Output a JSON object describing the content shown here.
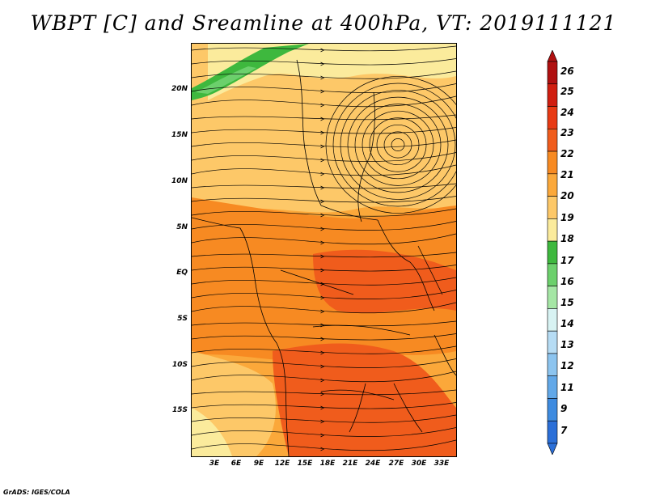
{
  "title": "WBPT [C] and Sreamline at 400hPa, VT: 2019111121",
  "credit": "GrADS: IGES/COLA",
  "map": {
    "variable": "WBPT [C]",
    "overlay": "Sreamline",
    "level": "400hPa",
    "valid_time": "2019111121",
    "lat_ticks": [
      "20N",
      "15N",
      "10N",
      "5N",
      "EQ",
      "5S",
      "10S",
      "15S"
    ],
    "lon_ticks": [
      "3E",
      "6E",
      "9E",
      "12E",
      "15E",
      "18E",
      "21E",
      "24E",
      "27E",
      "30E",
      "33E"
    ],
    "regions": [
      {
        "name": "cool-band-northwest",
        "level": 17
      },
      {
        "name": "warm-band-equatorial",
        "level": 22
      },
      {
        "name": "warm-core-southeast",
        "level": 23
      }
    ]
  },
  "colorbar": {
    "levels": [
      "26",
      "25",
      "24",
      "23",
      "22",
      "21",
      "20",
      "19",
      "18",
      "17",
      "16",
      "15",
      "14",
      "13",
      "12",
      "11",
      "9",
      "7"
    ],
    "colors": [
      "#b01010",
      "#d01e10",
      "#e83a14",
      "#f05c1c",
      "#f78a22",
      "#fba83a",
      "#fdc868",
      "#fbeb9c",
      "#3eb83e",
      "#6cd06c",
      "#a5e6a5",
      "#d8f3f3",
      "#b6dcf4",
      "#8cc4ef",
      "#62a8e8",
      "#3e8be0",
      "#2b6fd8"
    ]
  }
}
